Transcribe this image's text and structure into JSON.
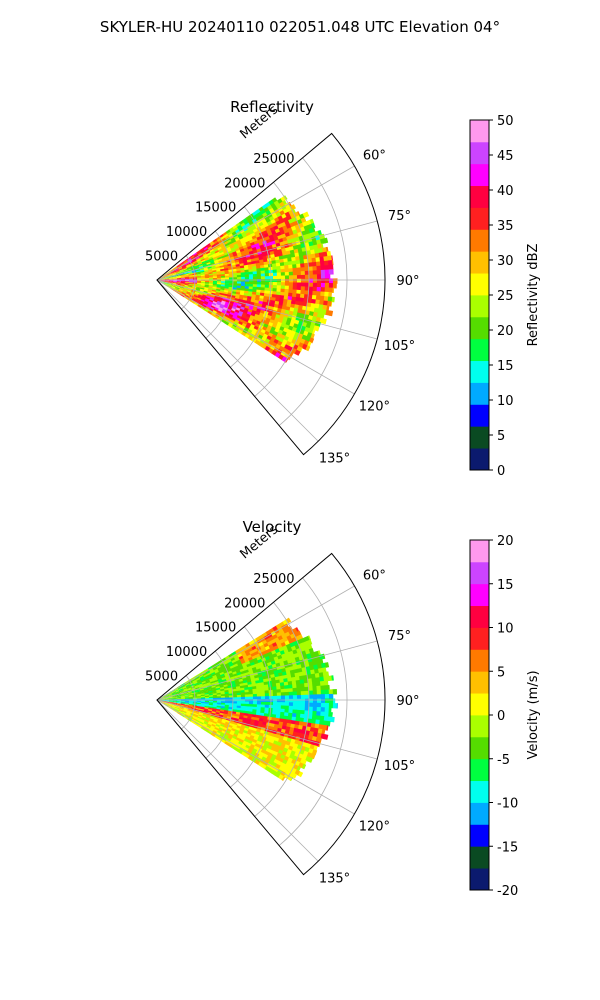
{
  "figure": {
    "title": "SKYLER-HU  20240110  022051.048 UTC Elevation 04°"
  },
  "chart_data": [
    {
      "type": "heatmap",
      "projection": "polar-sector",
      "title": "Reflectivity",
      "range_axis_label": "Meters",
      "range_ticks": [
        "5000",
        "10000",
        "15000",
        "20000",
        "25000"
      ],
      "range_max": 30000,
      "azimuth_ticks": [
        "60°",
        "75°",
        "90°",
        "105°",
        "120°",
        "135°"
      ],
      "azimuth_range_deg": [
        50,
        140
      ],
      "colorbar": {
        "label": "Reflectivity dBZ",
        "min": 0,
        "max": 50,
        "ticks": [
          "0",
          "5",
          "10",
          "15",
          "20",
          "25",
          "30",
          "35",
          "40",
          "45",
          "50"
        ]
      },
      "colors": [
        "#0b1a6e",
        "#0a4a22",
        "#0000ff",
        "#00aaff",
        "#00ffee",
        "#00ff40",
        "#55dd00",
        "#aaff00",
        "#ffff00",
        "#ffc000",
        "#ff7a00",
        "#ff2020",
        "#ff0040",
        "#ff00ff",
        "#cc44ff",
        "#ff99ee"
      ]
    },
    {
      "type": "heatmap",
      "projection": "polar-sector",
      "title": "Velocity",
      "range_axis_label": "Meters",
      "range_ticks": [
        "5000",
        "10000",
        "15000",
        "20000",
        "25000"
      ],
      "range_max": 30000,
      "azimuth_ticks": [
        "60°",
        "75°",
        "90°",
        "105°",
        "120°",
        "135°"
      ],
      "azimuth_range_deg": [
        50,
        140
      ],
      "colorbar": {
        "label": "Velocity (m/s)",
        "min": -20,
        "max": 20,
        "ticks": [
          "-20",
          "-15",
          "-10",
          "-5",
          "0",
          "5",
          "10",
          "15",
          "20"
        ]
      },
      "colors": [
        "#0b1a6e",
        "#0a4a22",
        "#0000ff",
        "#00aaff",
        "#00ffee",
        "#00ff40",
        "#55dd00",
        "#aaff00",
        "#ffff00",
        "#ffc000",
        "#ff7a00",
        "#ff2020",
        "#ff0040",
        "#ff00ff",
        "#cc44ff",
        "#ff99ee"
      ]
    }
  ]
}
